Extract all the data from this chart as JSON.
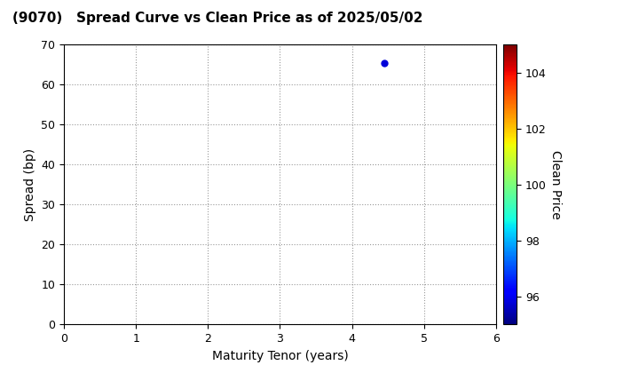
{
  "title": "(9070)   Spread Curve vs Clean Price as of 2025/05/02",
  "xlabel": "Maturity Tenor (years)",
  "ylabel": "Spread (bp)",
  "colorbar_label": "Clean Price",
  "xlim": [
    0,
    6
  ],
  "ylim": [
    0,
    70
  ],
  "xticks": [
    0,
    1,
    2,
    3,
    4,
    5,
    6
  ],
  "yticks": [
    0,
    10,
    20,
    30,
    40,
    50,
    60,
    70
  ],
  "point_x": 4.45,
  "point_y": 65.5,
  "point_color_value": 95.8,
  "cmap_min": 95,
  "cmap_max": 105,
  "cbar_ticks": [
    96,
    98,
    100,
    102,
    104
  ],
  "point_size": 25,
  "background_color": "#ffffff",
  "title_fontsize": 11,
  "axis_label_fontsize": 10,
  "tick_fontsize": 9
}
